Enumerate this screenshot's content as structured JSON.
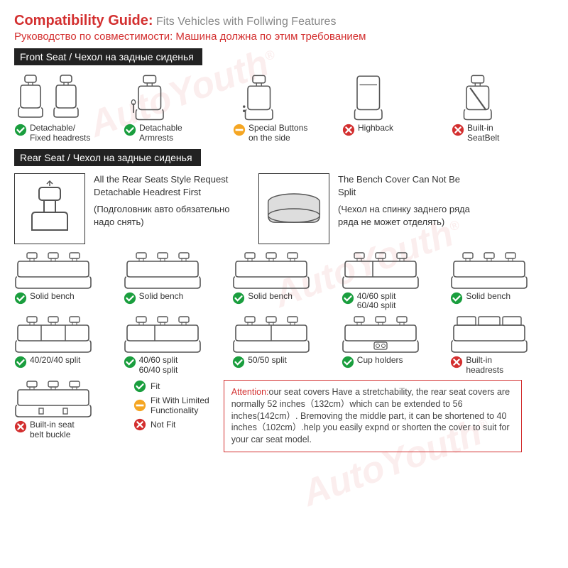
{
  "colors": {
    "red": "#d32f2f",
    "green": "#1a9e3e",
    "orange": "#f5a623",
    "black": "#222",
    "gray": "#888",
    "seat_stroke": "#555"
  },
  "watermark": "AutoYouth",
  "watermark_reg": "®",
  "title": {
    "main": "Compatibility Guide:",
    "sub": "Fits Vehicles with Follwing Features",
    "ru": "Руководство по совместимости: Машина должна по этим требованием"
  },
  "section_front": "Front Seat / Чехол на задные сиденья",
  "front_items": [
    {
      "status": "ok",
      "label": "Detachable/\nFixed headrests",
      "type": "pair"
    },
    {
      "status": "ok",
      "label": "Detachable\nArmrests",
      "type": "single_arm"
    },
    {
      "status": "warn",
      "label": "Special Buttons\non the side",
      "type": "single_btn"
    },
    {
      "status": "no",
      "label": "Highback",
      "type": "highback"
    },
    {
      "status": "no",
      "label": "Built-in\nSeatBelt",
      "type": "belt"
    }
  ],
  "section_rear": "Rear Seat / Чехол на задные сиденья",
  "rear_info": [
    {
      "en": "All the Rear Seats Style Request Detachable Headrest First",
      "ru": "(Подголовник авто обязательно надо снять)",
      "icon": "headrest"
    },
    {
      "en": "The Bench Cover Can Not Be Split",
      "ru": "(Чехол на спинку заднего ряда ряда не может отделять)",
      "icon": "bench"
    }
  ],
  "rear_grid1": [
    {
      "status": "ok",
      "label": "Solid bench"
    },
    {
      "status": "ok",
      "label": "Solid bench"
    },
    {
      "status": "ok",
      "label": "Solid bench"
    },
    {
      "status": "ok",
      "label": "40/60 split\n60/40 split"
    },
    {
      "status": "ok",
      "label": "Solid bench"
    }
  ],
  "rear_grid2": [
    {
      "status": "ok",
      "label": "40/20/40 split"
    },
    {
      "status": "ok",
      "label": "40/60 split\n60/40 split"
    },
    {
      "status": "ok",
      "label": "50/50 split"
    },
    {
      "status": "ok",
      "label": "Cup holders"
    },
    {
      "status": "no",
      "label": "Built-in\nheadrests"
    }
  ],
  "rear_grid3": [
    {
      "status": "no",
      "label": "Built-in seat\nbelt buckle"
    }
  ],
  "legend": [
    {
      "status": "ok",
      "label": "Fit"
    },
    {
      "status": "warn",
      "label": "Fit With Limited\nFunctionality"
    },
    {
      "status": "no",
      "label": "Not Fit"
    }
  ],
  "attention": {
    "label": "Attention:",
    "text": "our seat covers Have a stretchability, the rear seat covers are normally 52 inches（132cm）which can be extended to 56 inches(142cm）. Bremoving the middle part, it can be shortened to 40 inches（102cm）.help you easily expnd or shorten the cover to suit for your car seat model."
  }
}
